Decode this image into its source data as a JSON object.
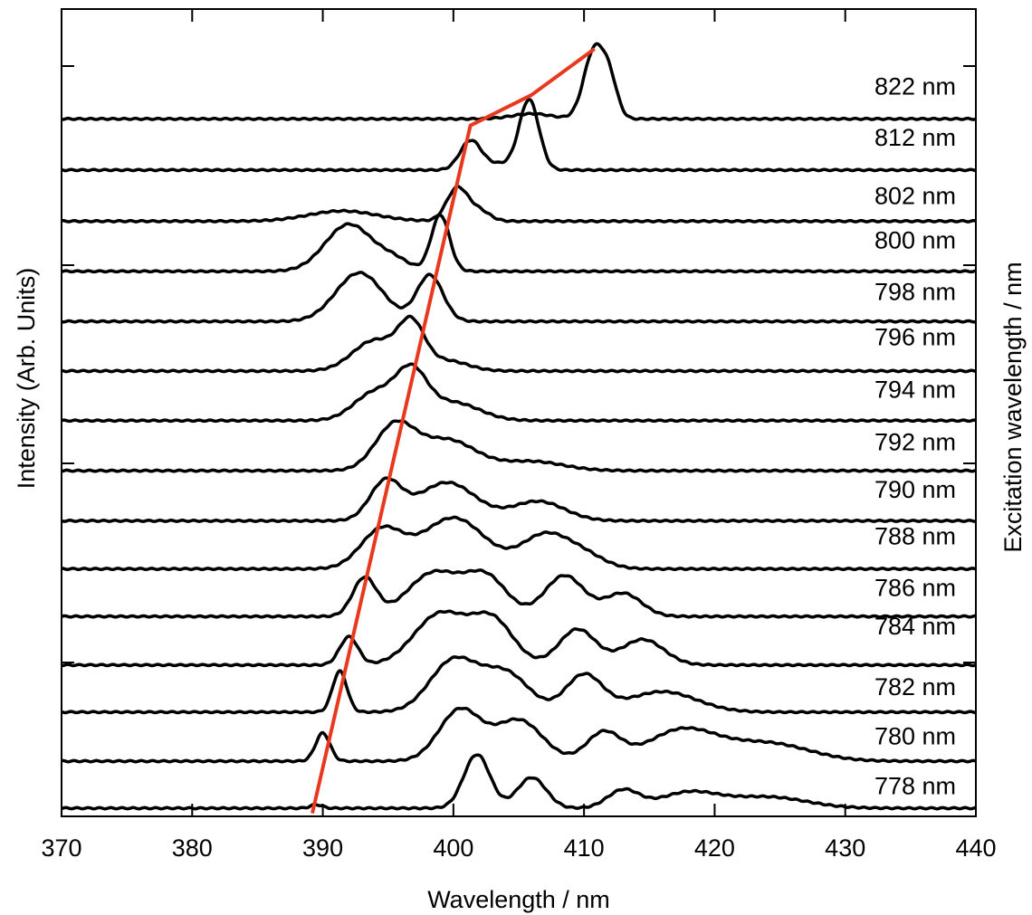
{
  "chart_data": {
    "type": "line",
    "xlabel": "Wavelength / nm",
    "ylabel": "Intensity (Arb. Units)",
    "ylabel_right": "Excitation wavelength / nm",
    "xlim": [
      370,
      440
    ],
    "x_ticks": [
      370,
      380,
      390,
      400,
      410,
      420,
      430,
      440
    ],
    "stacked": true,
    "grid": false,
    "legend": "inline labels at right",
    "series": [
      {
        "name": "778 nm",
        "baseline": 0,
        "labelOffset": 0.27,
        "peaks": [
          [
            389.5,
            0.07,
            0.45
          ],
          [
            401.8,
            1.05,
            1.0
          ],
          [
            406,
            0.6,
            1.1
          ],
          [
            413,
            0.35,
            1.2
          ],
          [
            418,
            0.3,
            2.2
          ],
          [
            424,
            0.22,
            3.0
          ]
        ]
      },
      {
        "name": "780 nm",
        "baseline": 0.92,
        "labelOffset": 0.33,
        "peaks": [
          [
            390,
            0.55,
            0.55
          ],
          [
            400.5,
            1.0,
            1.6
          ],
          [
            405,
            0.8,
            1.8
          ],
          [
            411.5,
            0.55,
            1.3
          ],
          [
            417.5,
            0.6,
            2.6
          ],
          [
            424,
            0.35,
            3.2
          ]
        ]
      },
      {
        "name": "782 nm",
        "baseline": 1.88,
        "labelOffset": 0.33,
        "peaks": [
          [
            391.3,
            0.8,
            0.55
          ],
          [
            400,
            1.0,
            1.8
          ],
          [
            404,
            0.75,
            1.8
          ],
          [
            410,
            0.72,
            1.4
          ],
          [
            416,
            0.4,
            2.6
          ]
        ]
      },
      {
        "name": "784 nm",
        "baseline": 2.8,
        "labelOffset": 0.6,
        "peaks": [
          [
            392,
            0.55,
            0.7
          ],
          [
            399,
            1.0,
            2.0
          ],
          [
            403,
            0.85,
            1.6
          ],
          [
            409.5,
            0.7,
            1.4
          ],
          [
            414.5,
            0.5,
            1.6
          ]
        ]
      },
      {
        "name": "786 nm",
        "baseline": 3.75,
        "labelOffset": 0.4,
        "peaks": [
          [
            393.2,
            0.75,
            0.9
          ],
          [
            398.5,
            0.85,
            2.0
          ],
          [
            402.5,
            0.75,
            1.6
          ],
          [
            408.5,
            0.8,
            1.5
          ],
          [
            413,
            0.45,
            1.4
          ]
        ]
      },
      {
        "name": "788 nm",
        "baseline": 4.68,
        "labelOffset": 0.48,
        "peaks": [
          [
            394.5,
            0.75,
            1.6
          ],
          [
            400,
            1.0,
            2.4
          ],
          [
            407,
            0.65,
            1.8
          ],
          [
            410,
            0.25,
            1.6
          ]
        ]
      },
      {
        "name": "790 nm",
        "baseline": 5.62,
        "labelOffset": 0.45,
        "peaks": [
          [
            394.8,
            0.75,
            1.2
          ],
          [
            399.5,
            0.75,
            2.2
          ],
          [
            406.5,
            0.38,
            2.0
          ]
        ]
      },
      {
        "name": "792 nm",
        "baseline": 6.6,
        "labelOffset": 0.4,
        "peaks": [
          [
            395.5,
            0.85,
            1.5
          ],
          [
            399.5,
            0.6,
            2.2
          ],
          [
            406,
            0.18,
            2.4
          ]
        ]
      },
      {
        "name": "794 nm",
        "baseline": 7.58,
        "labelOffset": 0.45,
        "peaks": [
          [
            394,
            0.55,
            1.6
          ],
          [
            396.8,
            0.88,
            1.2
          ],
          [
            400,
            0.35,
            2.0
          ]
        ]
      },
      {
        "name": "796 nm",
        "baseline": 8.55,
        "labelOffset": 0.5,
        "peaks": [
          [
            394,
            0.6,
            1.7
          ],
          [
            396.8,
            0.85,
            1.0
          ],
          [
            399.5,
            0.2,
            1.6
          ]
        ]
      },
      {
        "name": "798 nm",
        "baseline": 9.52,
        "labelOffset": 0.42,
        "peaks": [
          [
            392.8,
            0.95,
            1.8
          ],
          [
            398.2,
            0.9,
            1.0
          ]
        ]
      },
      {
        "name": "800 nm",
        "baseline": 10.5,
        "labelOffset": 0.45,
        "peaks": [
          [
            392,
            0.92,
            1.8
          ],
          [
            399,
            1.1,
            0.7
          ],
          [
            395.5,
            0.2,
            1.2
          ]
        ]
      },
      {
        "name": "802 nm",
        "baseline": 11.48,
        "labelOffset": 0.33,
        "peaks": [
          [
            391.5,
            0.2,
            2.6
          ],
          [
            400.3,
            0.65,
            0.8
          ],
          [
            402,
            0.2,
            0.8
          ]
        ]
      },
      {
        "name": "812 nm",
        "baseline": 12.48,
        "labelOffset": 0.48,
        "peaks": [
          [
            401.3,
            0.55,
            0.8
          ],
          [
            405.8,
            1.35,
            0.75
          ],
          [
            403.5,
            0.12,
            1.4
          ]
        ]
      },
      {
        "name": "822 nm",
        "baseline": 13.48,
        "labelOffset": 0.48,
        "peaks": [
          [
            410.8,
            1.35,
            0.8
          ],
          [
            412,
            0.6,
            0.6
          ],
          [
            406,
            0.1,
            1.5
          ]
        ]
      }
    ],
    "annotation_line": {
      "color": "#e8391f",
      "points": [
        [
          389.2,
          -0.1
        ],
        [
          401.3,
          13.35
        ],
        [
          406,
          13.95
        ],
        [
          410.8,
          14.85
        ]
      ]
    }
  }
}
